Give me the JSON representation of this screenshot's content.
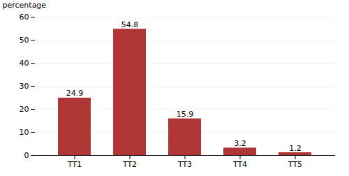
{
  "chart_data": {
    "type": "bar",
    "categories": [
      "TT1",
      "TT2",
      "TT3",
      "TT4",
      "TT5"
    ],
    "values": [
      24.9,
      54.8,
      15.9,
      3.2,
      1.2
    ],
    "color": "#b03535",
    "ylabel": "percentage",
    "ylim": [
      0,
      60
    ],
    "yticks": [
      0,
      10,
      20,
      30,
      40,
      50,
      60
    ],
    "grid": true,
    "data_labels": true
  }
}
